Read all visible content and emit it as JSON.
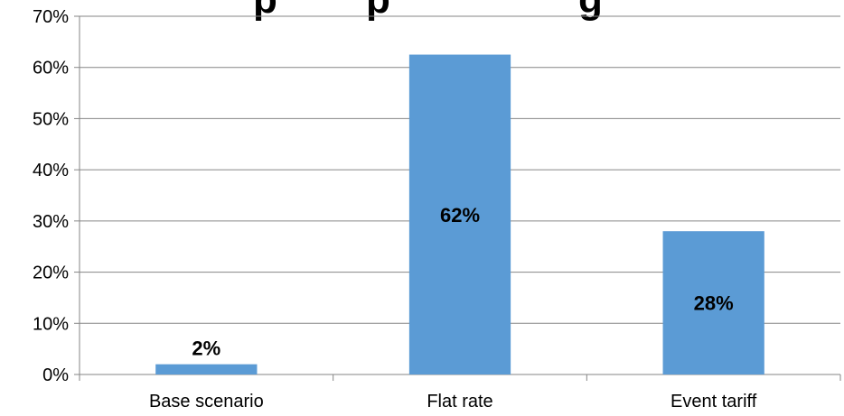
{
  "chart_data": {
    "type": "bar",
    "title": "Peak Reduction p... ...p ... ...g ...",
    "title_visible": "Peak reduction percentage",
    "categories": [
      "Base scenario",
      "Flat rate",
      "Event tariff"
    ],
    "values": [
      0.02,
      0.625,
      0.28
    ],
    "data_labels": [
      "2%",
      "62%",
      "28%"
    ],
    "ylim": [
      0,
      0.7
    ],
    "yticks": [
      0,
      0.1,
      0.2,
      0.3,
      0.4,
      0.5,
      0.6,
      0.7
    ],
    "ytick_labels": [
      "0%",
      "10%",
      "20%",
      "30%",
      "40%",
      "50%",
      "60%",
      "70%"
    ],
    "xlabel": "",
    "ylabel": "",
    "grid": true,
    "legend": "none",
    "bar_color": "#5B9BD5"
  }
}
